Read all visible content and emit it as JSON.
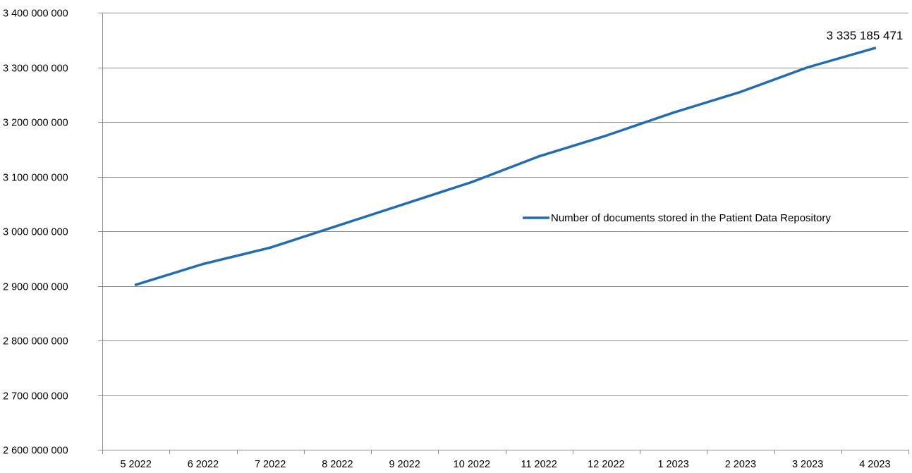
{
  "chart_data": {
    "type": "line",
    "title": "",
    "xlabel": "",
    "ylabel": "",
    "categories": [
      "5 2022",
      "6 2022",
      "7 2022",
      "8 2022",
      "9 2022",
      "10 2022",
      "11 2022",
      "12 2022",
      "1 2023",
      "2 2023",
      "3 2023",
      "4 2023"
    ],
    "series": [
      {
        "name": "Number of documents stored in the Patient Data Repository",
        "values": [
          2902000000,
          2940000000,
          2970000000,
          3010000000,
          3050000000,
          3090000000,
          3137000000,
          3175000000,
          3217000000,
          3255000000,
          3300000000,
          3335185471
        ],
        "color": "#1f6db5"
      }
    ],
    "ylim": [
      2600000000,
      3400000000
    ],
    "yticks": [
      2600000000,
      2700000000,
      2800000000,
      2900000000,
      3000000000,
      3100000000,
      3200000000,
      3300000000,
      3400000000
    ],
    "ytick_labels": [
      "2 600 000 000",
      "2 700 000 000",
      "2 800 000 000",
      "2 900 000 000",
      "3 000 000 000",
      "3 100 000 000",
      "3 200 000 000",
      "3 300 000 000",
      "3 400 000 000"
    ],
    "data_labels": [
      {
        "index": 11,
        "text": "3 335 185 471"
      }
    ],
    "grid": "horizontal",
    "legend_position": "right"
  }
}
